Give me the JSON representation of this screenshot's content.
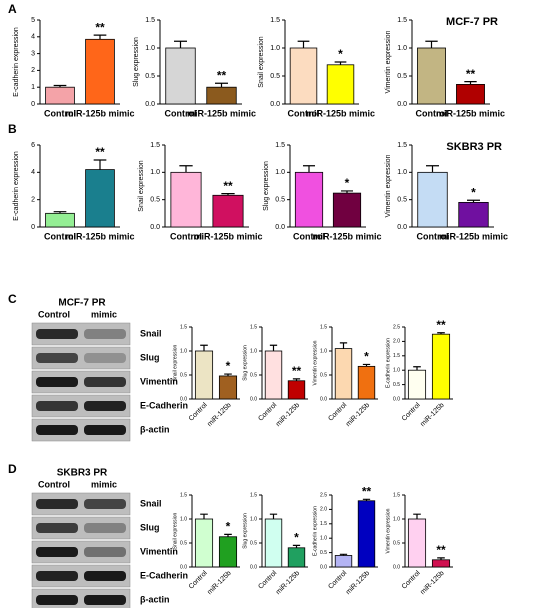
{
  "panel_labels": [
    "A",
    "B",
    "C",
    "D"
  ],
  "blots": [
    {
      "title": "MCF-7 PR",
      "columns": [
        "Control",
        "mimic"
      ],
      "bands": [
        "Snail",
        "Slug",
        "Vimentin",
        "E-Cadherin",
        "β-actin"
      ]
    },
    {
      "title": "SKBR3 PR",
      "columns": [
        "Control",
        "mimic"
      ],
      "bands": [
        "Snail",
        "Slug",
        "Vimentin",
        "E-Cadherin",
        "β-actin"
      ]
    }
  ],
  "chart_data": [
    {
      "type": "bar",
      "ylabel": "E-cadherin expression",
      "categories": [
        "Control",
        "miR-125b mimic"
      ],
      "values": [
        1.0,
        3.85
      ],
      "errors": [
        0.1,
        0.25
      ],
      "colors": [
        "#f4a3a8",
        "#ff6619"
      ],
      "ylim": [
        0,
        5
      ],
      "yticks": [
        0,
        1,
        2,
        3,
        4,
        5
      ],
      "annotation": "**"
    },
    {
      "type": "bar",
      "ylabel": "Slug expression",
      "categories": [
        "Control",
        "miR-125b mimic"
      ],
      "values": [
        1.0,
        0.3
      ],
      "errors": [
        0.12,
        0.07
      ],
      "colors": [
        "#d6d6d6",
        "#8b5a1e"
      ],
      "ylim": [
        0,
        1.5
      ],
      "yticks": [
        {
          "value": 0,
          "label": "0.0"
        },
        0.5,
        {
          "value": 1,
          "label": "1.0"
        },
        1.5
      ],
      "annotation": "**"
    },
    {
      "type": "bar",
      "ylabel": "Snail expression",
      "categories": [
        "Control",
        "miR-125b mimic"
      ],
      "values": [
        1.0,
        0.7
      ],
      "errors": [
        0.12,
        0.05
      ],
      "colors": [
        "#fcdcc0",
        "#ffff00"
      ],
      "ylim": [
        0,
        1.5
      ],
      "yticks": [
        {
          "value": 0,
          "label": "0.0"
        },
        0.5,
        {
          "value": 1,
          "label": "1.0"
        },
        1.5
      ],
      "annotation": "*"
    },
    {
      "type": "bar",
      "title": "MCF-7 PR",
      "ylabel": "Vimentin expression",
      "categories": [
        "Control",
        "miR-125b mimic"
      ],
      "values": [
        1.0,
        0.35
      ],
      "errors": [
        0.12,
        0.05
      ],
      "colors": [
        "#c2b583",
        "#b00000"
      ],
      "ylim": [
        0,
        1.5
      ],
      "yticks": [
        {
          "value": 0,
          "label": "0.0"
        },
        0.5,
        {
          "value": 1,
          "label": "1.0"
        },
        1.5
      ],
      "annotation": "**"
    },
    {
      "type": "bar",
      "ylabel": "E-cadherin expression",
      "categories": [
        "Control",
        "miR-125b mimic"
      ],
      "values": [
        1.0,
        4.2
      ],
      "errors": [
        0.12,
        0.7
      ],
      "colors": [
        "#94ee94",
        "#1a7f8e"
      ],
      "ylim": [
        0,
        6
      ],
      "yticks": [
        0,
        2,
        4,
        6
      ],
      "annotation": "**"
    },
    {
      "type": "bar",
      "ylabel": "Snail expression",
      "categories": [
        "Control",
        "miR-125b mimic"
      ],
      "values": [
        1.0,
        0.58
      ],
      "errors": [
        0.12,
        0.03
      ],
      "colors": [
        "#ffb6d9",
        "#d01060"
      ],
      "ylim": [
        0,
        1.5
      ],
      "yticks": [
        {
          "value": 0,
          "label": "0.0"
        },
        0.5,
        {
          "value": 1,
          "label": "1.0"
        },
        1.5
      ],
      "annotation": "**"
    },
    {
      "type": "bar",
      "ylabel": "Slug expression",
      "categories": [
        "Control",
        "miR-125b mimic"
      ],
      "values": [
        1.0,
        0.62
      ],
      "errors": [
        0.12,
        0.04
      ],
      "colors": [
        "#f050e0",
        "#700040"
      ],
      "ylim": [
        0,
        1.5
      ],
      "yticks": [
        {
          "value": 0,
          "label": "0.0"
        },
        0.5,
        {
          "value": 1,
          "label": "1.0"
        },
        1.5
      ],
      "annotation": "*"
    },
    {
      "type": "bar",
      "title": "SKBR3 PR",
      "ylabel": "Vimentin expression",
      "categories": [
        "Control",
        "miR-125b mimic"
      ],
      "values": [
        1.0,
        0.45
      ],
      "errors": [
        0.12,
        0.04
      ],
      "colors": [
        "#c4dcf4",
        "#7010a0"
      ],
      "ylim": [
        0,
        1.5
      ],
      "yticks": [
        {
          "value": 0,
          "label": "0.0"
        },
        0.5,
        {
          "value": 1,
          "label": "1.0"
        },
        1.5
      ],
      "annotation": "*"
    },
    {
      "type": "bar",
      "ylabel": "Snail expression",
      "categories": [
        "Control",
        "miR-125b"
      ],
      "values": [
        1.0,
        0.48
      ],
      "errors": [
        0.12,
        0.04
      ],
      "colors": [
        "#ece4c4",
        "#a06020"
      ],
      "ylim": [
        0,
        1.5
      ],
      "yticks": [
        {
          "value": 0,
          "label": "0.0"
        },
        0.5,
        {
          "value": 1,
          "label": "1.0"
        },
        1.5
      ],
      "annotation": "*"
    },
    {
      "type": "bar",
      "ylabel": "Slug expression",
      "categories": [
        "Control",
        "miR-125b"
      ],
      "values": [
        1.0,
        0.38
      ],
      "errors": [
        0.12,
        0.04
      ],
      "colors": [
        "#ffe0e0",
        "#c00000"
      ],
      "ylim": [
        0,
        1.5
      ],
      "yticks": [
        {
          "value": 0,
          "label": "0.0"
        },
        0.5,
        {
          "value": 1,
          "label": "1.0"
        },
        1.5
      ],
      "annotation": "**"
    },
    {
      "type": "bar",
      "ylabel": "Vimentin expression",
      "categories": [
        "Control",
        "miR-125b"
      ],
      "values": [
        1.05,
        0.68
      ],
      "errors": [
        0.12,
        0.04
      ],
      "colors": [
        "#fcd8b0",
        "#f07010"
      ],
      "ylim": [
        0,
        1.5
      ],
      "yticks": [
        {
          "value": 0,
          "label": "0.0"
        },
        0.5,
        {
          "value": 1,
          "label": "1.0"
        },
        1.5
      ],
      "annotation": "*"
    },
    {
      "type": "bar",
      "ylabel": "E-cadherin expression",
      "categories": [
        "Control",
        "miR-125b"
      ],
      "values": [
        1.0,
        2.25
      ],
      "errors": [
        0.12,
        0.05
      ],
      "colors": [
        "#fffff0",
        "#ffff00"
      ],
      "ylim": [
        0,
        2.5
      ],
      "yticks": [
        {
          "value": 0,
          "label": "0.0"
        },
        0.5,
        {
          "value": 1,
          "label": "1.0"
        },
        1.5,
        {
          "value": 2,
          "label": "2.0"
        },
        2.5
      ],
      "annotation": "**"
    },
    {
      "type": "bar",
      "ylabel": "Snail expression",
      "categories": [
        "Control",
        "miR-125b"
      ],
      "values": [
        1.0,
        0.63
      ],
      "errors": [
        0.1,
        0.05
      ],
      "colors": [
        "#d0ffd0",
        "#20a020"
      ],
      "ylim": [
        0,
        1.5
      ],
      "yticks": [
        {
          "value": 0,
          "label": "0.0"
        },
        0.5,
        {
          "value": 1,
          "label": "1.0"
        },
        1.5
      ],
      "annotation": "*"
    },
    {
      "type": "bar",
      "ylabel": "Slug expression",
      "categories": [
        "Control",
        "miR-125b"
      ],
      "values": [
        1.0,
        0.4
      ],
      "errors": [
        0.1,
        0.05
      ],
      "colors": [
        "#d0fff0",
        "#20a060"
      ],
      "ylim": [
        0,
        1.5
      ],
      "yticks": [
        {
          "value": 0,
          "label": "0.0"
        },
        0.5,
        {
          "value": 1,
          "label": "1.0"
        },
        1.5
      ],
      "annotation": "*"
    },
    {
      "type": "bar",
      "ylabel": "E-cadherin expression",
      "categories": [
        "Control",
        "miR-125b"
      ],
      "values": [
        0.4,
        2.3
      ],
      "errors": [
        0.04,
        0.05
      ],
      "colors": [
        "#b4b4f4",
        "#0000c0"
      ],
      "ylim": [
        0,
        2.5
      ],
      "yticks": [
        {
          "value": 0,
          "label": "0.0"
        },
        0.5,
        {
          "value": 1,
          "label": "1.0"
        },
        1.5,
        {
          "value": 2,
          "label": "2.0"
        },
        2.5
      ],
      "annotation": "**"
    },
    {
      "type": "bar",
      "ylabel": "Vimentin expression",
      "categories": [
        "Control",
        "miR-125b"
      ],
      "values": [
        1.0,
        0.15
      ],
      "errors": [
        0.1,
        0.04
      ],
      "colors": [
        "#ffd0f0",
        "#d01050"
      ],
      "ylim": [
        0,
        1.5
      ],
      "yticks": [
        {
          "value": 0,
          "label": "0.0"
        },
        0.5,
        {
          "value": 1,
          "label": "1.0"
        },
        1.5
      ],
      "annotation": "**"
    }
  ]
}
